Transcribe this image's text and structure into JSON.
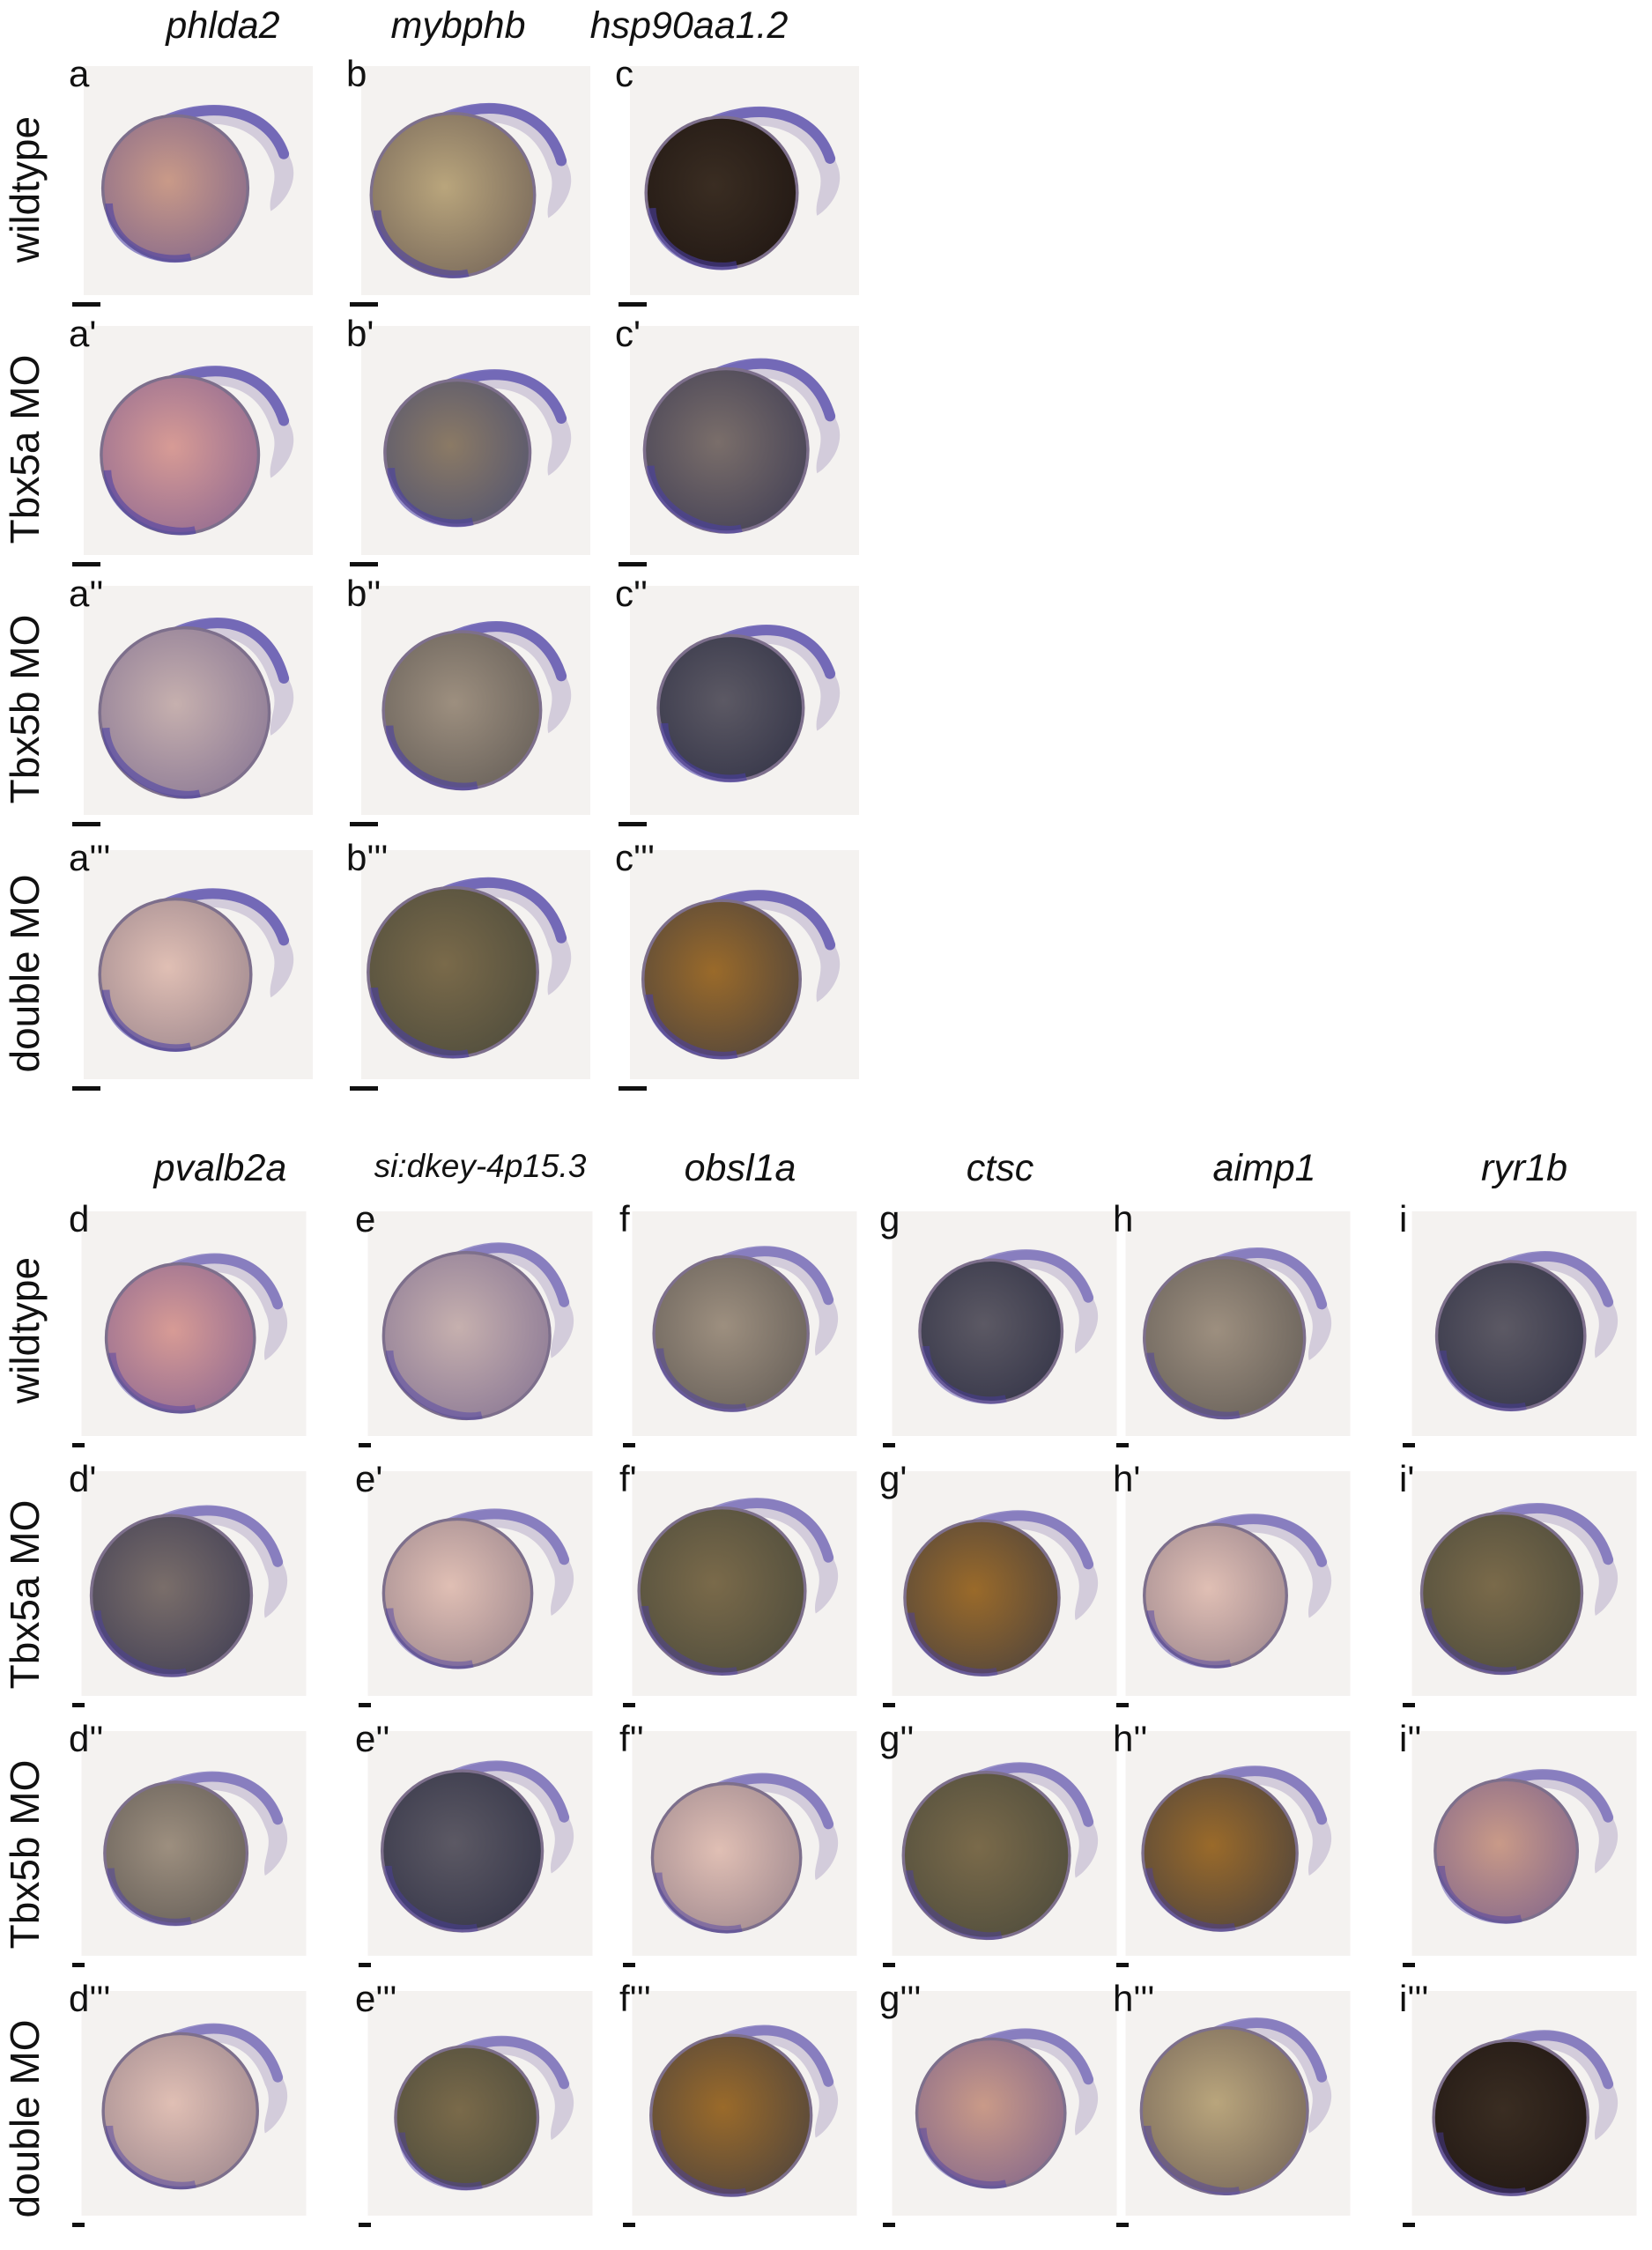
{
  "colors": {
    "stain": "#4a3ea8",
    "embryo": "#8a7b6e",
    "background": "#f4f2f0"
  },
  "top": {
    "genes": [
      "phlda2",
      "mybphb",
      "hsp90aa1.2"
    ],
    "rows": [
      "wildtype",
      "Tbx5a MO",
      "Tbx5b MO",
      "double MO"
    ],
    "panels": [
      [
        "a",
        "b",
        "c"
      ],
      [
        "a'",
        "b'",
        "c'"
      ],
      [
        "a''",
        "b''",
        "c''"
      ],
      [
        "a'''",
        "b'''",
        "c'''"
      ]
    ]
  },
  "bottom": {
    "genes": [
      "pvalb2a",
      "si:dkey-4p15.3",
      "obsl1a",
      "ctsc",
      "aimp1",
      "ryr1b"
    ],
    "rows": [
      "wildtype",
      "Tbx5a MO",
      "Tbx5b MO",
      "double MO"
    ],
    "panels": [
      [
        "d",
        "e",
        "f",
        "g",
        "h",
        "i"
      ],
      [
        "d'",
        "e'",
        "f'",
        "g'",
        "h'",
        "i'"
      ],
      [
        "d''",
        "e''",
        "f''",
        "g''",
        "h''",
        "i''"
      ],
      [
        "d'''",
        "e'''",
        "f'''",
        "g'''",
        "h'''",
        "i'''"
      ]
    ]
  }
}
